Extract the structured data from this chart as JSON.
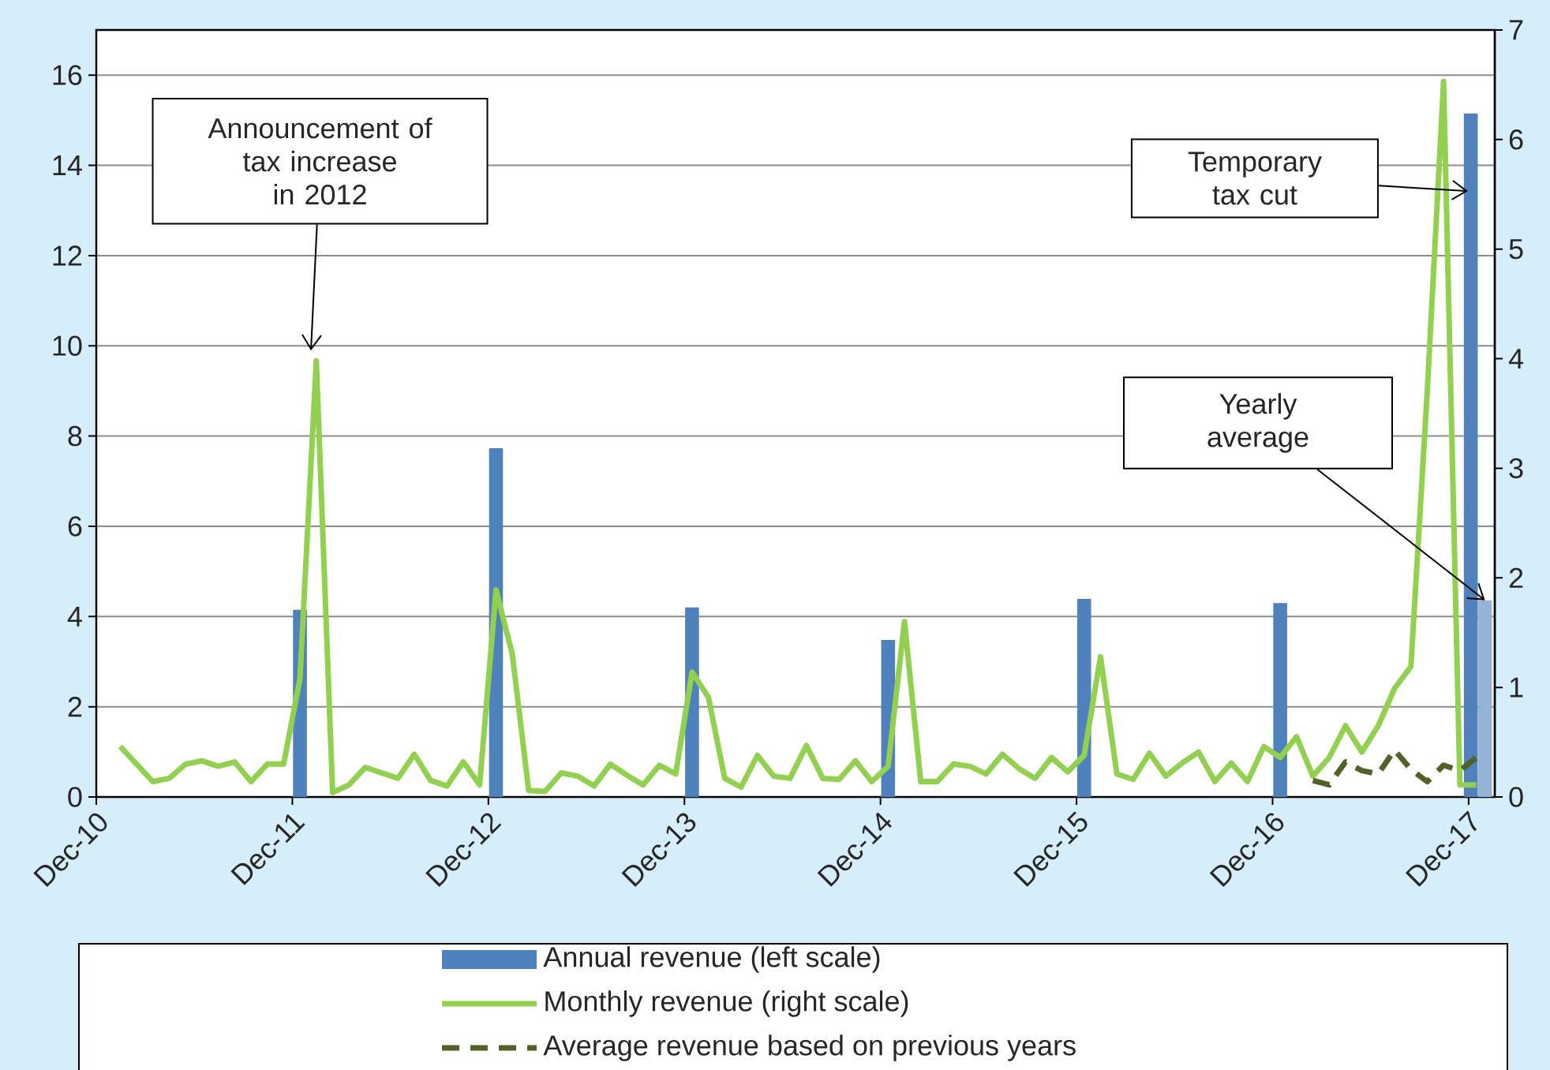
{
  "chart_data": {
    "type": "bar",
    "xlim": [
      "2010-12",
      "2018-01-19"
    ],
    "xticks": [
      {
        "value": "2010-12",
        "label": "Dec-10"
      },
      {
        "value": "2011-12",
        "label": "Dec-11"
      },
      {
        "value": "2012-12",
        "label": "Dec-12"
      },
      {
        "value": "2013-12",
        "label": "Dec-13"
      },
      {
        "value": "2014-12",
        "label": "Dec-14"
      },
      {
        "value": "2015-12",
        "label": "Dec-15"
      },
      {
        "value": "2016-12",
        "label": "Dec-16"
      },
      {
        "value": "2017-12",
        "label": "Dec-17"
      }
    ],
    "ylim": [
      0,
      17
    ],
    "yticks": [
      0,
      2,
      4,
      6,
      8,
      10,
      12,
      14,
      16
    ],
    "y2lim": [
      0,
      7
    ],
    "y2ticks": [
      0,
      1,
      2,
      3,
      4,
      5,
      6,
      7
    ],
    "grid": "y",
    "legend": "bottom",
    "series": [
      {
        "name": "Annual revenue (left scale)",
        "color": "#4f81bd",
        "x": [
          "2011-12-15",
          "2012-12-15",
          "2013-12-15",
          "2014-12-15",
          "2015-12-15",
          "2016-12-15",
          "2017-12-05"
        ],
        "values": [
          4.15,
          7.73,
          4.2,
          3.48,
          4.39,
          4.3,
          15.15
        ]
      },
      {
        "color": "#95b3d7",
        "x": [
          "2018-01-01"
        ],
        "values": [
          4.36
        ]
      },
      {
        "name": "Monthly revenue (right scale)",
        "type": "line",
        "color": "#92d050",
        "axis": "y2",
        "x": [
          "2011-01-15",
          "2011-02-15",
          "2011-03-15",
          "2011-04-15",
          "2011-05-15",
          "2011-06-15",
          "2011-07-15",
          "2011-08-15",
          "2011-09-15",
          "2011-10-15",
          "2011-11-15",
          "2011-12-15",
          "2012-01-15",
          "2012-02-15",
          "2012-03-15",
          "2012-04-15",
          "2012-05-15",
          "2012-06-15",
          "2012-07-15",
          "2012-08-15",
          "2012-09-15",
          "2012-10-15",
          "2012-11-15",
          "2012-12-15",
          "2013-01-15",
          "2013-02-15",
          "2013-03-15",
          "2013-04-15",
          "2013-05-15",
          "2013-06-15",
          "2013-07-15",
          "2013-08-15",
          "2013-09-15",
          "2013-10-15",
          "2013-11-15",
          "2013-12-15",
          "2014-01-15",
          "2014-02-15",
          "2014-03-15",
          "2014-04-15",
          "2014-05-15",
          "2014-06-15",
          "2014-07-15",
          "2014-08-15",
          "2014-09-15",
          "2014-10-15",
          "2014-11-15",
          "2014-12-15",
          "2015-01-15",
          "2015-02-15",
          "2015-03-15",
          "2015-04-15",
          "2015-05-15",
          "2015-06-15",
          "2015-07-15",
          "2015-08-15",
          "2015-09-15",
          "2015-10-15",
          "2015-11-15",
          "2015-12-15",
          "2016-01-15",
          "2016-02-15",
          "2016-03-15",
          "2016-04-15",
          "2016-05-15",
          "2016-06-15",
          "2016-07-15",
          "2016-08-15",
          "2016-09-15",
          "2016-10-15",
          "2016-11-15",
          "2016-12-15",
          "2017-01-15",
          "2017-02-15",
          "2017-03-15",
          "2017-04-15",
          "2017-05-15",
          "2017-06-15",
          "2017-07-15",
          "2017-08-15",
          "2017-09-15",
          "2017-10-15",
          "2017-11-15",
          "2017-12-15"
        ],
        "values": [
          0.46,
          0.3,
          0.14,
          0.17,
          0.3,
          0.33,
          0.28,
          0.32,
          0.14,
          0.3,
          0.3,
          1.08,
          3.98,
          0.04,
          0.11,
          0.27,
          0.22,
          0.17,
          0.39,
          0.15,
          0.1,
          0.32,
          0.11,
          1.89,
          1.3,
          0.06,
          0.05,
          0.22,
          0.19,
          0.1,
          0.3,
          0.2,
          0.11,
          0.29,
          0.21,
          1.14,
          0.91,
          0.17,
          0.09,
          0.38,
          0.19,
          0.17,
          0.47,
          0.17,
          0.16,
          0.33,
          0.14,
          0.28,
          1.6,
          0.14,
          0.14,
          0.3,
          0.28,
          0.21,
          0.39,
          0.26,
          0.17,
          0.36,
          0.23,
          0.38,
          1.28,
          0.21,
          0.16,
          0.4,
          0.19,
          0.31,
          0.41,
          0.14,
          0.31,
          0.14,
          0.46,
          0.36,
          0.55,
          0.19,
          0.36,
          0.65,
          0.41,
          0.65,
          0.99,
          1.19,
          3.7,
          6.53,
          0.11,
          0.11
        ]
      },
      {
        "name": "Average revenue based on previous years",
        "type": "line",
        "line_style": "dashed",
        "color": "#4f6228",
        "axis": "y2",
        "x": [
          "2017-02-15",
          "2017-03-15",
          "2017-04-15",
          "2017-05-15",
          "2017-06-15",
          "2017-07-15",
          "2017-08-15",
          "2017-09-15",
          "2017-10-15",
          "2017-11-15",
          "2017-12-15"
        ],
        "values": [
          0.15,
          0.11,
          0.32,
          0.24,
          0.21,
          0.43,
          0.25,
          0.14,
          0.29,
          0.24,
          0.36
        ]
      }
    ],
    "annotations": [
      "Announcement of tax increase in 2012",
      "Temporary tax cut",
      {
        "text": "Yearly average",
        "x": "2018-01-01",
        "y": 4.36
      }
    ]
  }
}
